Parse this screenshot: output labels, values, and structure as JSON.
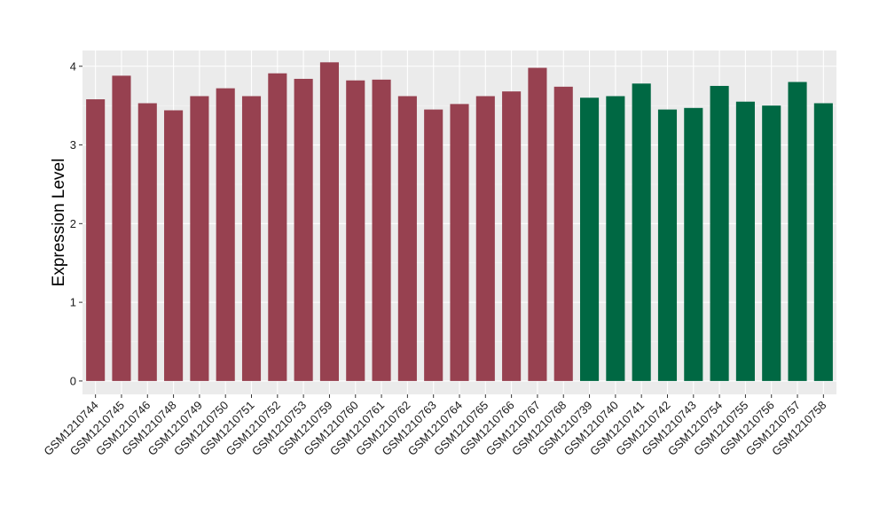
{
  "chart_data": {
    "type": "bar",
    "ylabel": "Expression Level",
    "xlabel": "",
    "ylim": [
      -0.17,
      4.2
    ],
    "yticks": [
      0,
      1,
      2,
      3,
      4
    ],
    "grid": true,
    "background": "#ebebeb",
    "colors": {
      "group_a": "#974150",
      "group_b": "#006843"
    },
    "categories": [
      "GSM1210744",
      "GSM1210745",
      "GSM1210746",
      "GSM1210748",
      "GSM1210749",
      "GSM1210750",
      "GSM1210751",
      "GSM1210752",
      "GSM1210753",
      "GSM1210759",
      "GSM1210760",
      "GSM1210761",
      "GSM1210762",
      "GSM1210763",
      "GSM1210764",
      "GSM1210765",
      "GSM1210766",
      "GSM1210767",
      "GSM1210768",
      "GSM1210739",
      "GSM1210740",
      "GSM1210741",
      "GSM1210742",
      "GSM1210743",
      "GSM1210754",
      "GSM1210755",
      "GSM1210756",
      "GSM1210757",
      "GSM1210758"
    ],
    "values": [
      3.58,
      3.88,
      3.53,
      3.44,
      3.62,
      3.72,
      3.62,
      3.91,
      3.84,
      4.05,
      3.82,
      3.83,
      3.62,
      3.45,
      3.52,
      3.62,
      3.68,
      3.98,
      3.74,
      3.6,
      3.62,
      3.78,
      3.45,
      3.47,
      3.75,
      3.55,
      3.5,
      3.8,
      3.53
    ],
    "groups": [
      "group_a",
      "group_a",
      "group_a",
      "group_a",
      "group_a",
      "group_a",
      "group_a",
      "group_a",
      "group_a",
      "group_a",
      "group_a",
      "group_a",
      "group_a",
      "group_a",
      "group_a",
      "group_a",
      "group_a",
      "group_a",
      "group_a",
      "group_b",
      "group_b",
      "group_b",
      "group_b",
      "group_b",
      "group_b",
      "group_b",
      "group_b",
      "group_b",
      "group_b"
    ]
  }
}
